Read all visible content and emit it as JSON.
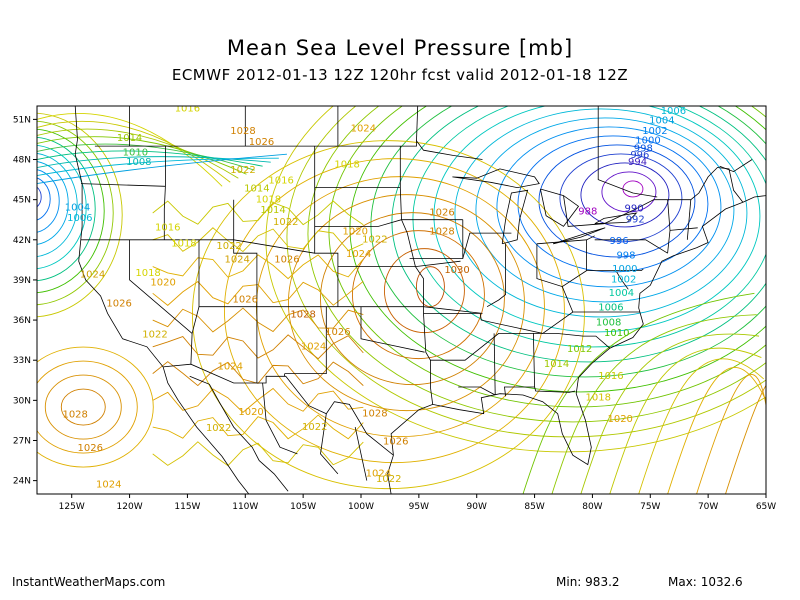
{
  "title": "Mean Sea Level Pressure [mb]",
  "subtitle": "ECMWF 2012-01-13 12Z 120hr fcst valid 2012-01-18 12Z",
  "credit": "InstantWeatherMaps.com",
  "min_label": "Min:",
  "min_value": "983.2",
  "max_label": "Max:",
  "max_value": "1032.6",
  "lat_ticks": [
    "51N",
    "48N",
    "45N",
    "42N",
    "39N",
    "36N",
    "33N",
    "30N",
    "27N",
    "24N"
  ],
  "lon_ticks": [
    "125W",
    "120W",
    "115W",
    "110W",
    "105W",
    "100W",
    "95W",
    "90W",
    "85W",
    "80W",
    "75W",
    "70W",
    "65W"
  ],
  "contour_labels": [
    {
      "text": "1016",
      "lon": -115.0,
      "lat": 51.6,
      "color": "#d4d400"
    },
    {
      "text": "1028",
      "lon": -110.2,
      "lat": 49.9,
      "color": "#d08000"
    },
    {
      "text": "1024",
      "lon": -99.8,
      "lat": 50.1,
      "color": "#e0a000"
    },
    {
      "text": "1026",
      "lon": -108.6,
      "lat": 49.1,
      "color": "#d08000"
    },
    {
      "text": "1014",
      "lon": -120.0,
      "lat": 49.4,
      "color": "#9cc800"
    },
    {
      "text": "1010",
      "lon": -119.5,
      "lat": 48.3,
      "color": "#40c040"
    },
    {
      "text": "1008",
      "lon": -119.2,
      "lat": 47.6,
      "color": "#00b8b0"
    },
    {
      "text": "1022",
      "lon": -110.2,
      "lat": 47.0,
      "color": "#d0b000"
    },
    {
      "text": "1018",
      "lon": -101.2,
      "lat": 47.4,
      "color": "#d4d400"
    },
    {
      "text": "1016",
      "lon": -106.9,
      "lat": 46.2,
      "color": "#d4d400"
    },
    {
      "text": "1014",
      "lon": -109.0,
      "lat": 45.6,
      "color": "#b8c800"
    },
    {
      "text": "1018",
      "lon": -108.0,
      "lat": 44.8,
      "color": "#d4d400"
    },
    {
      "text": "1014",
      "lon": -107.6,
      "lat": 44.0,
      "color": "#b8c800"
    },
    {
      "text": "1022",
      "lon": -106.5,
      "lat": 43.1,
      "color": "#d0b000"
    },
    {
      "text": "1004",
      "lon": -124.5,
      "lat": 44.2,
      "color": "#00a0e0"
    },
    {
      "text": "1006",
      "lon": -124.3,
      "lat": 43.4,
      "color": "#00b8d8"
    },
    {
      "text": "1016",
      "lon": -116.7,
      "lat": 42.7,
      "color": "#d4d400"
    },
    {
      "text": "1018",
      "lon": -115.3,
      "lat": 41.5,
      "color": "#d4d400"
    },
    {
      "text": "1022",
      "lon": -111.4,
      "lat": 41.3,
      "color": "#d0b000"
    },
    {
      "text": "1024",
      "lon": -110.7,
      "lat": 40.3,
      "color": "#d0a000"
    },
    {
      "text": "1026",
      "lon": -106.4,
      "lat": 40.3,
      "color": "#d08000"
    },
    {
      "text": "1020",
      "lon": -100.5,
      "lat": 42.4,
      "color": "#e0a000"
    },
    {
      "text": "1022",
      "lon": -98.8,
      "lat": 41.8,
      "color": "#d0b000"
    },
    {
      "text": "1024",
      "lon": -100.2,
      "lat": 40.7,
      "color": "#e0a000"
    },
    {
      "text": "1026",
      "lon": -93.0,
      "lat": 43.8,
      "color": "#d08000"
    },
    {
      "text": "1028",
      "lon": -93.0,
      "lat": 42.4,
      "color": "#d08000"
    },
    {
      "text": "1030",
      "lon": -91.7,
      "lat": 39.5,
      "color": "#c06000"
    },
    {
      "text": "1024",
      "lon": -123.2,
      "lat": 39.2,
      "color": "#d0a000"
    },
    {
      "text": "1018",
      "lon": -118.4,
      "lat": 39.3,
      "color": "#d4d400"
    },
    {
      "text": "1020",
      "lon": -117.1,
      "lat": 38.6,
      "color": "#e0a000"
    },
    {
      "text": "1026",
      "lon": -120.9,
      "lat": 37.0,
      "color": "#d08000"
    },
    {
      "text": "1026",
      "lon": -110.0,
      "lat": 37.3,
      "color": "#d08000"
    },
    {
      "text": "1028",
      "lon": -105.0,
      "lat": 36.2,
      "color": "#c06000"
    },
    {
      "text": "1026",
      "lon": -102.0,
      "lat": 34.9,
      "color": "#d08000"
    },
    {
      "text": "1022",
      "lon": -117.8,
      "lat": 34.7,
      "color": "#d0b000"
    },
    {
      "text": "1024",
      "lon": -104.1,
      "lat": 33.8,
      "color": "#e0a000"
    },
    {
      "text": "1024",
      "lon": -111.3,
      "lat": 32.3,
      "color": "#e0a000"
    },
    {
      "text": "1028",
      "lon": -124.7,
      "lat": 28.7,
      "color": "#d08000"
    },
    {
      "text": "1020",
      "lon": -109.5,
      "lat": 28.9,
      "color": "#e0a000"
    },
    {
      "text": "1022",
      "lon": -112.3,
      "lat": 27.7,
      "color": "#d0b000"
    },
    {
      "text": "1022",
      "lon": -104.0,
      "lat": 27.8,
      "color": "#d0b000"
    },
    {
      "text": "1028",
      "lon": -98.8,
      "lat": 28.8,
      "color": "#d08000"
    },
    {
      "text": "1026",
      "lon": -97.0,
      "lat": 26.7,
      "color": "#d08000"
    },
    {
      "text": "1026",
      "lon": -123.4,
      "lat": 26.2,
      "color": "#d08000"
    },
    {
      "text": "1024",
      "lon": -121.8,
      "lat": 23.5,
      "color": "#e0a000"
    },
    {
      "text": "1024",
      "lon": -98.5,
      "lat": 24.3,
      "color": "#e0a000"
    },
    {
      "text": "1022",
      "lon": -97.6,
      "lat": 23.9,
      "color": "#d0b000"
    },
    {
      "text": "1006",
      "lon": -73.0,
      "lat": 51.4,
      "color": "#00b8d8"
    },
    {
      "text": "1004",
      "lon": -74.0,
      "lat": 50.7,
      "color": "#00a0e0"
    },
    {
      "text": "1002",
      "lon": -74.6,
      "lat": 49.9,
      "color": "#0080f0"
    },
    {
      "text": "1000",
      "lon": -75.2,
      "lat": 49.2,
      "color": "#0070f0"
    },
    {
      "text": "998",
      "lon": -75.6,
      "lat": 48.6,
      "color": "#0050e0"
    },
    {
      "text": "996",
      "lon": -75.9,
      "lat": 48.1,
      "color": "#2040d0"
    },
    {
      "text": "994",
      "lon": -76.1,
      "lat": 47.6,
      "color": "#4020c0"
    },
    {
      "text": "988",
      "lon": -80.4,
      "lat": 43.9,
      "color": "#a000c0"
    },
    {
      "text": "990",
      "lon": -76.4,
      "lat": 44.1,
      "color": "#2020c0"
    },
    {
      "text": "992",
      "lon": -76.3,
      "lat": 43.3,
      "color": "#2040d0"
    },
    {
      "text": "996",
      "lon": -77.7,
      "lat": 41.7,
      "color": "#0060f0"
    },
    {
      "text": "998",
      "lon": -77.1,
      "lat": 40.6,
      "color": "#0080f0"
    },
    {
      "text": "1000",
      "lon": -77.2,
      "lat": 39.6,
      "color": "#00a0e0"
    },
    {
      "text": "1002",
      "lon": -77.3,
      "lat": 38.8,
      "color": "#00b8d8"
    },
    {
      "text": "1004",
      "lon": -77.5,
      "lat": 37.8,
      "color": "#00c8a0"
    },
    {
      "text": "1006",
      "lon": -78.4,
      "lat": 36.7,
      "color": "#00c080"
    },
    {
      "text": "1008",
      "lon": -78.6,
      "lat": 35.6,
      "color": "#20c040"
    },
    {
      "text": "1010",
      "lon": -77.9,
      "lat": 34.8,
      "color": "#40c000"
    },
    {
      "text": "1012",
      "lon": -81.1,
      "lat": 33.6,
      "color": "#80c800"
    },
    {
      "text": "1014",
      "lon": -83.1,
      "lat": 32.5,
      "color": "#a0c800"
    },
    {
      "text": "1016",
      "lon": -78.4,
      "lat": 31.6,
      "color": "#c8c800"
    },
    {
      "text": "1018",
      "lon": -79.5,
      "lat": 30.0,
      "color": "#d4c000"
    },
    {
      "text": "1020",
      "lon": -77.6,
      "lat": 28.4,
      "color": "#e0a000"
    }
  ]
}
